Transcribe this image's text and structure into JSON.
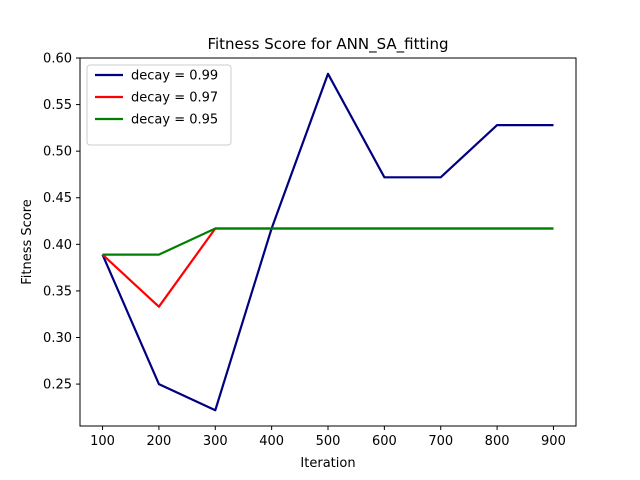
{
  "chart_data": {
    "type": "line",
    "title": "Fitness Score for ANN_SA_fitting",
    "xlabel": "Iteration",
    "ylabel": "Fitness Score",
    "x": [
      100,
      200,
      300,
      400,
      500,
      600,
      700,
      800,
      900
    ],
    "xticks": [
      "100",
      "200",
      "300",
      "400",
      "500",
      "600",
      "700",
      "800",
      "900"
    ],
    "yticks": [
      "0.25",
      "0.30",
      "0.35",
      "0.40",
      "0.45",
      "0.50",
      "0.55",
      "0.60"
    ],
    "xlim": [
      60,
      940
    ],
    "ylim": [
      0.205,
      0.6
    ],
    "grid": false,
    "legend_position": "top-left",
    "series": [
      {
        "name": "decay = 0.99",
        "color": "#000080",
        "values": [
          0.389,
          0.25,
          0.222,
          0.417,
          0.583,
          0.472,
          0.472,
          0.528,
          0.528
        ]
      },
      {
        "name": "decay = 0.97",
        "color": "#ff0000",
        "values": [
          0.389,
          0.333,
          0.417,
          0.417,
          0.417,
          0.417,
          0.417,
          0.417,
          0.417
        ]
      },
      {
        "name": "decay = 0.95",
        "color": "#008000",
        "values": [
          0.389,
          0.389,
          0.417,
          0.417,
          0.417,
          0.417,
          0.417,
          0.417,
          0.417
        ]
      }
    ]
  }
}
